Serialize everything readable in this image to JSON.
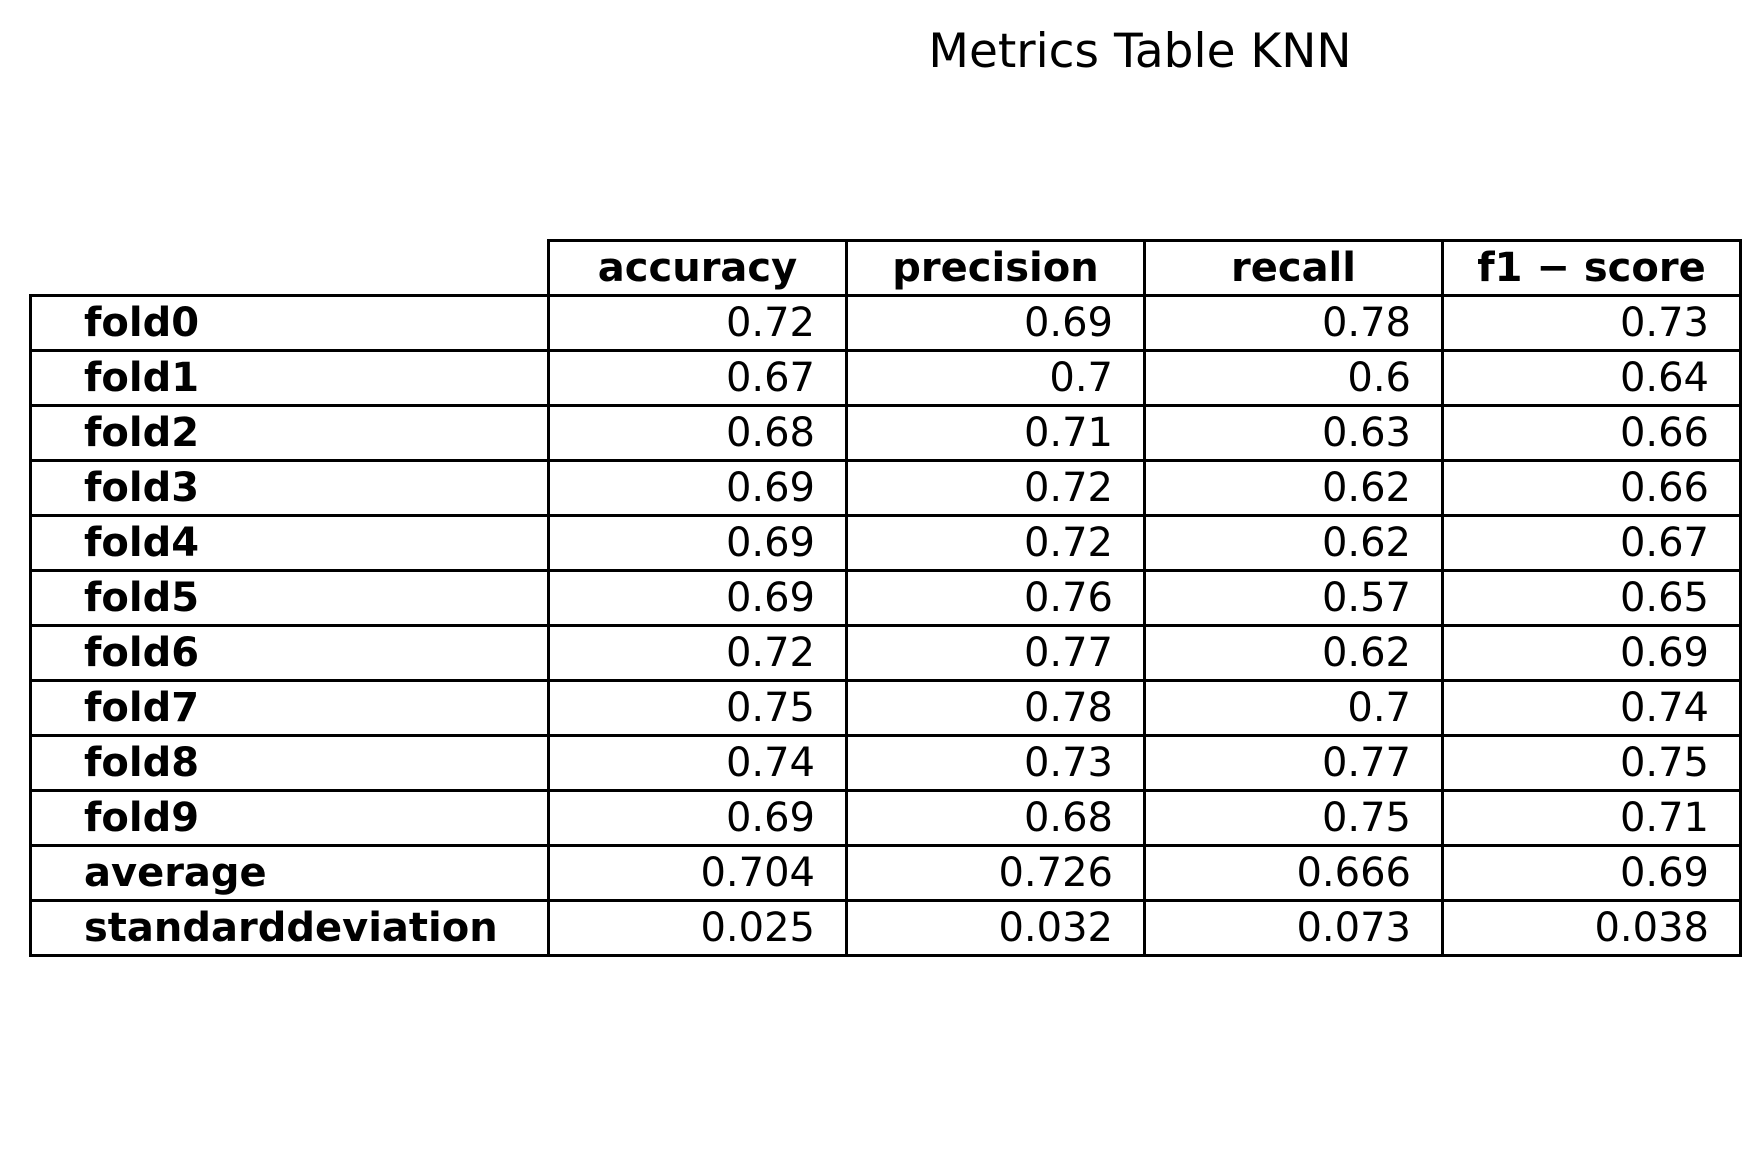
{
  "chart_data": {
    "type": "table",
    "title": "Metrics Table KNN",
    "columns": [
      "accuracy",
      "precision",
      "recall",
      "f1 − score"
    ],
    "rows": [
      {
        "label": "fold0",
        "values": [
          "0.72",
          "0.69",
          "0.78",
          "0.73"
        ]
      },
      {
        "label": "fold1",
        "values": [
          "0.67",
          "0.7",
          "0.6",
          "0.64"
        ]
      },
      {
        "label": "fold2",
        "values": [
          "0.68",
          "0.71",
          "0.63",
          "0.66"
        ]
      },
      {
        "label": "fold3",
        "values": [
          "0.69",
          "0.72",
          "0.62",
          "0.66"
        ]
      },
      {
        "label": "fold4",
        "values": [
          "0.69",
          "0.72",
          "0.62",
          "0.67"
        ]
      },
      {
        "label": "fold5",
        "values": [
          "0.69",
          "0.76",
          "0.57",
          "0.65"
        ]
      },
      {
        "label": "fold6",
        "values": [
          "0.72",
          "0.77",
          "0.62",
          "0.69"
        ]
      },
      {
        "label": "fold7",
        "values": [
          "0.75",
          "0.78",
          "0.7",
          "0.74"
        ]
      },
      {
        "label": "fold8",
        "values": [
          "0.74",
          "0.73",
          "0.77",
          "0.75"
        ]
      },
      {
        "label": "fold9",
        "values": [
          "0.69",
          "0.68",
          "0.75",
          "0.71"
        ]
      },
      {
        "label": "average",
        "values": [
          "0.704",
          "0.726",
          "0.666",
          "0.69"
        ]
      },
      {
        "label": "standarddeviation",
        "values": [
          "0.025",
          "0.032",
          "0.073",
          "0.038"
        ]
      }
    ],
    "border_color": "#000000"
  }
}
